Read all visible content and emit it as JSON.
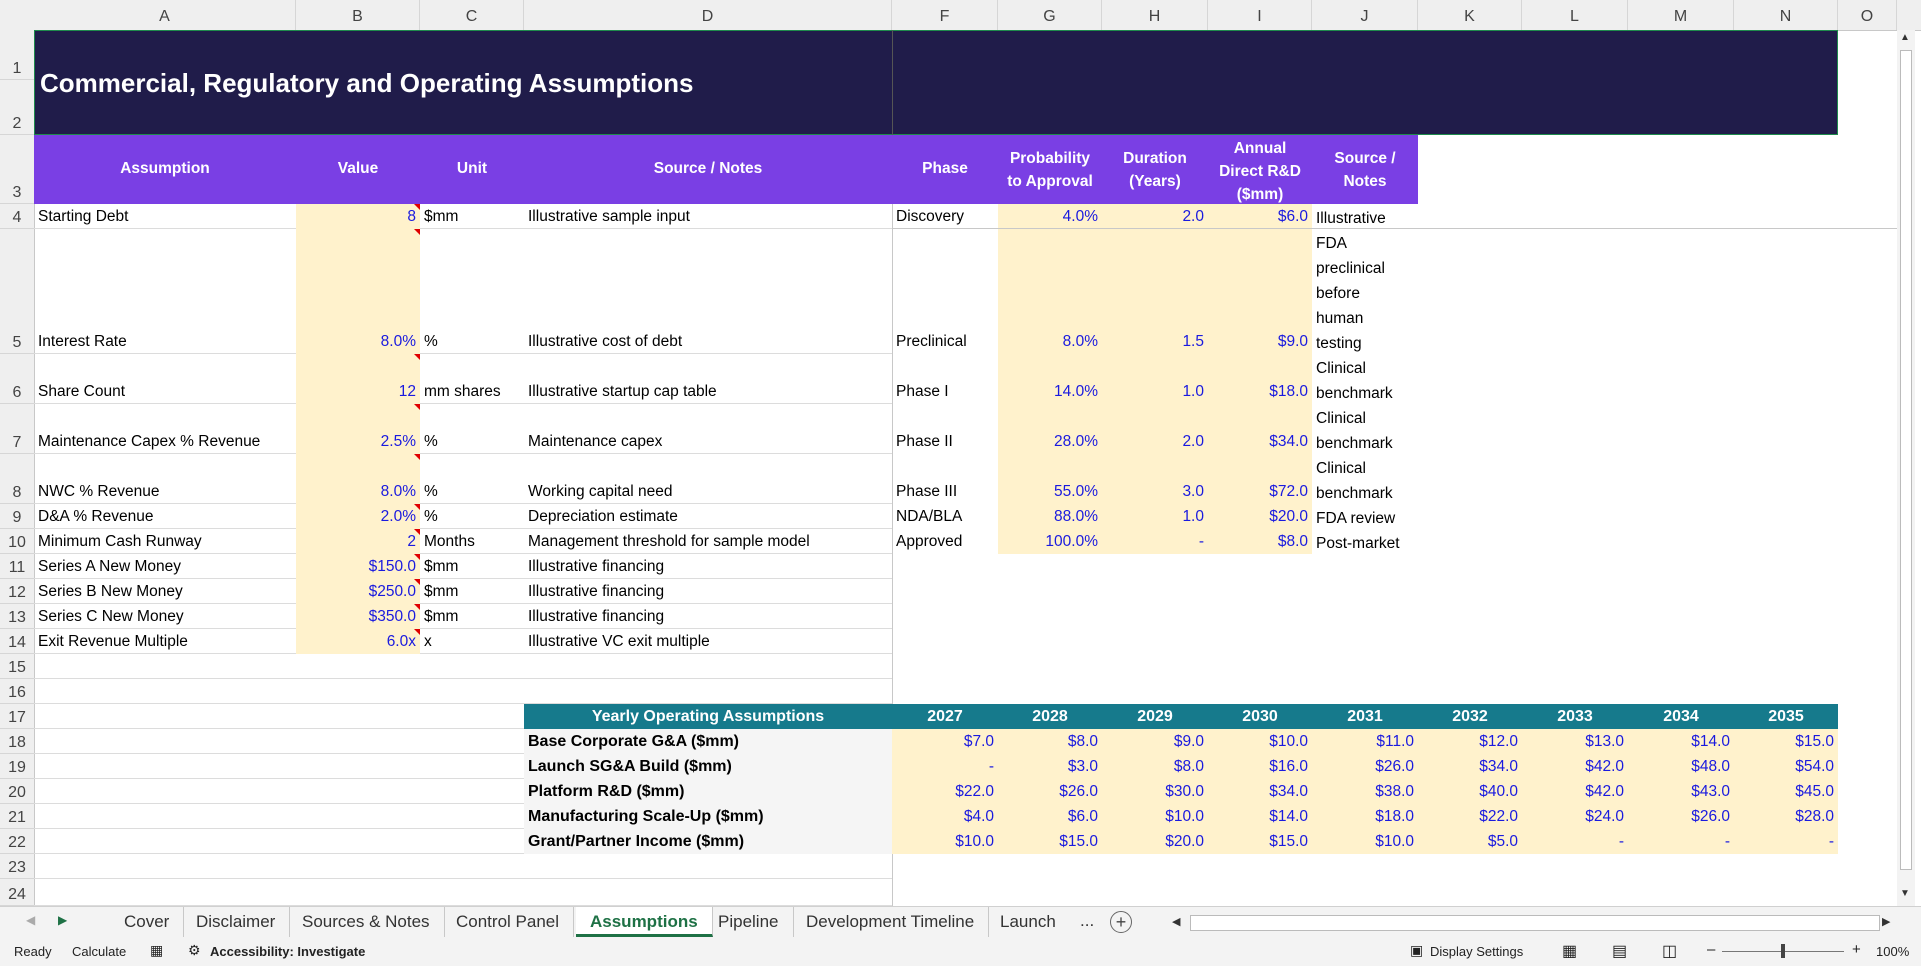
{
  "columns": [
    "A",
    "B",
    "C",
    "D",
    "F",
    "G",
    "H",
    "I",
    "J",
    "K",
    "L",
    "M",
    "N",
    "O"
  ],
  "rows": [
    "1",
    "2",
    "3",
    "4",
    "5",
    "6",
    "7",
    "8",
    "9",
    "10",
    "11",
    "12",
    "13",
    "14",
    "15",
    "16",
    "17",
    "18",
    "19",
    "20",
    "21",
    "22",
    "23",
    "24"
  ],
  "title": "Commercial, Regulatory and Operating Assumptions",
  "assumptions": {
    "headers": {
      "assumption": "Assumption",
      "value": "Value",
      "unit": "Unit",
      "notes": "Source / Notes"
    },
    "items": [
      {
        "label": "Starting Debt",
        "value": "8",
        "unit": "$mm",
        "note": "Illustrative sample input"
      },
      {
        "label": "Interest Rate",
        "value": "8.0%",
        "unit": "%",
        "note": "Illustrative cost of debt"
      },
      {
        "label": "Share Count",
        "value": "12",
        "unit": "mm shares",
        "note": "Illustrative startup cap table"
      },
      {
        "label": "Maintenance Capex % Revenue",
        "value": "2.5%",
        "unit": "%",
        "note": "Maintenance capex"
      },
      {
        "label": "NWC % Revenue",
        "value": "8.0%",
        "unit": "%",
        "note": "Working capital need"
      },
      {
        "label": "D&A % Revenue",
        "value": "2.0%",
        "unit": "%",
        "note": "Depreciation estimate"
      },
      {
        "label": "Minimum Cash Runway",
        "value": "2",
        "unit": "Months",
        "note": "Management threshold for sample model"
      },
      {
        "label": "Series A New Money",
        "value": "$150.0",
        "unit": "$mm",
        "note": "Illustrative financing"
      },
      {
        "label": "Series B New Money",
        "value": "$250.0",
        "unit": "$mm",
        "note": "Illustrative financing"
      },
      {
        "label": "Series C New Money",
        "value": "$350.0",
        "unit": "$mm",
        "note": "Illustrative financing"
      },
      {
        "label": "Exit Revenue Multiple",
        "value": "6.0x",
        "unit": "x",
        "note": "Illustrative VC exit multiple"
      }
    ]
  },
  "phases": {
    "headers": {
      "phase": "Phase",
      "prob": [
        "Probability",
        "to Approval"
      ],
      "dur": [
        "Duration",
        "(Years)"
      ],
      "rd": [
        "Annual",
        "Direct R&D",
        "($mm)"
      ],
      "src": [
        "Source /",
        "Notes"
      ]
    },
    "items": [
      {
        "phase": "Discovery",
        "prob": "4.0%",
        "dur": "2.0",
        "rd": "$6.0",
        "src": [
          "Illustrative"
        ]
      },
      {
        "phase": "Preclinical",
        "prob": "8.0%",
        "dur": "1.5",
        "rd": "$9.0",
        "src": [
          "FDA",
          "preclinical",
          "before",
          "human",
          "testing"
        ]
      },
      {
        "phase": "Phase I",
        "prob": "14.0%",
        "dur": "1.0",
        "rd": "$18.0",
        "src": [
          "Clinical",
          "benchmark"
        ]
      },
      {
        "phase": "Phase II",
        "prob": "28.0%",
        "dur": "2.0",
        "rd": "$34.0",
        "src": [
          "Clinical",
          "benchmark"
        ]
      },
      {
        "phase": "Phase III",
        "prob": "55.0%",
        "dur": "3.0",
        "rd": "$72.0",
        "src": [
          "Clinical",
          "benchmark"
        ]
      },
      {
        "phase": "NDA/BLA",
        "prob": "88.0%",
        "dur": "1.0",
        "rd": "$20.0",
        "src": [
          "FDA review"
        ]
      },
      {
        "phase": "Approved",
        "prob": "100.0%",
        "dur": "-",
        "rd": "$8.0",
        "src": [
          "Post-market"
        ]
      }
    ]
  },
  "yearly": {
    "title": "Yearly Operating Assumptions",
    "years": [
      "2027",
      "2028",
      "2029",
      "2030",
      "2031",
      "2032",
      "2033",
      "2034",
      "2035"
    ],
    "rows": [
      {
        "label": "Base Corporate G&A ($mm)",
        "values": [
          "$7.0",
          "$8.0",
          "$9.0",
          "$10.0",
          "$11.0",
          "$12.0",
          "$13.0",
          "$14.0",
          "$15.0"
        ]
      },
      {
        "label": "Launch SG&A Build ($mm)",
        "values": [
          "-",
          "$3.0",
          "$8.0",
          "$16.0",
          "$26.0",
          "$34.0",
          "$42.0",
          "$48.0",
          "$54.0"
        ]
      },
      {
        "label": "Platform R&D ($mm)",
        "values": [
          "$22.0",
          "$26.0",
          "$30.0",
          "$34.0",
          "$38.0",
          "$40.0",
          "$42.0",
          "$43.0",
          "$45.0"
        ]
      },
      {
        "label": "Manufacturing Scale-Up ($mm)",
        "values": [
          "$4.0",
          "$6.0",
          "$10.0",
          "$14.0",
          "$18.0",
          "$22.0",
          "$24.0",
          "$26.0",
          "$28.0"
        ]
      },
      {
        "label": "Grant/Partner Income ($mm)",
        "values": [
          "$10.0",
          "$15.0",
          "$20.0",
          "$15.0",
          "$10.0",
          "$5.0",
          "-",
          "-",
          "-"
        ]
      }
    ]
  },
  "tabs": [
    "Cover",
    "Disclaimer",
    "Sources & Notes",
    "Control Panel",
    "Assumptions",
    "Pipeline",
    "Development Timeline",
    "Launch"
  ],
  "active_tab": "Assumptions",
  "tab_more": "...",
  "status": {
    "ready": "Ready",
    "calculate": "Calculate",
    "accessibility": "Accessibility: Investigate",
    "display": "Display Settings",
    "zoom": "100%"
  },
  "colors": {
    "title_bg": "#201c4a",
    "header_bg": "#7a3fe4",
    "teal": "#167a8c",
    "input_bg": "#fff2cc",
    "active_tab": "#1e7145"
  }
}
